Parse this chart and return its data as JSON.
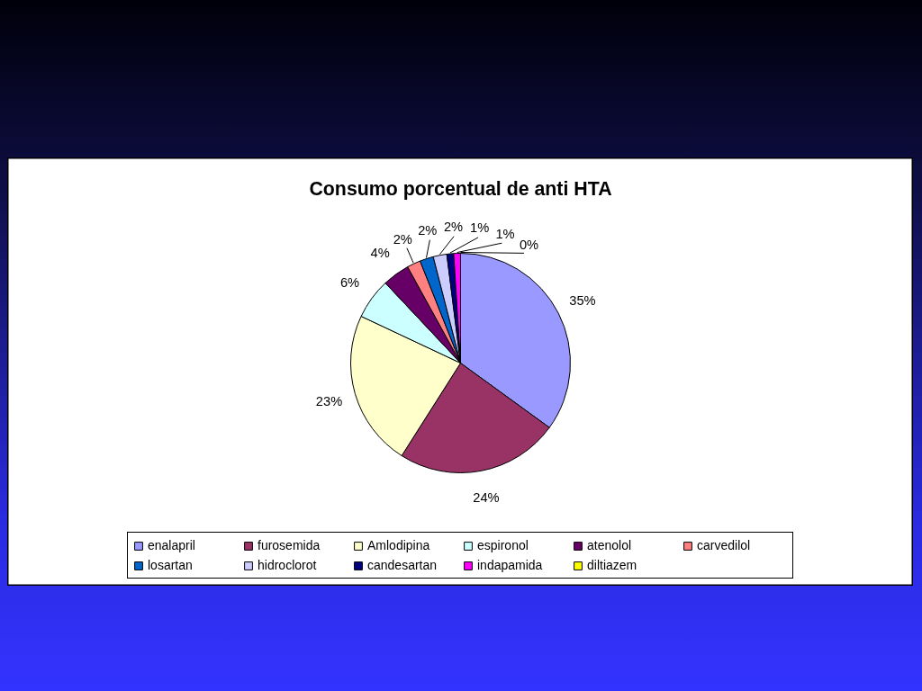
{
  "chart_data": {
    "type": "pie",
    "title": "Consumo porcentual de anti HTA",
    "categories": [
      "enalapril",
      "furosemida",
      "Amlodipina",
      "espironol",
      "atenolol",
      "carvedilol",
      "losartan",
      "hidroclorot",
      "candesartan",
      "indapamida",
      "diltiazem"
    ],
    "values": [
      35,
      24,
      23,
      6,
      4,
      2,
      2,
      2,
      1,
      1,
      0
    ],
    "value_labels": [
      "35%",
      "24%",
      "23%",
      "6%",
      "4%",
      "2%",
      "2%",
      "2%",
      "1%",
      "1%",
      "0%"
    ],
    "colors": [
      "#9999ff",
      "#993366",
      "#ffffcc",
      "#ccffff",
      "#660066",
      "#ff8080",
      "#0066cc",
      "#ccccff",
      "#000080",
      "#ff00ff",
      "#ffff00"
    ],
    "legend": "bottom"
  }
}
